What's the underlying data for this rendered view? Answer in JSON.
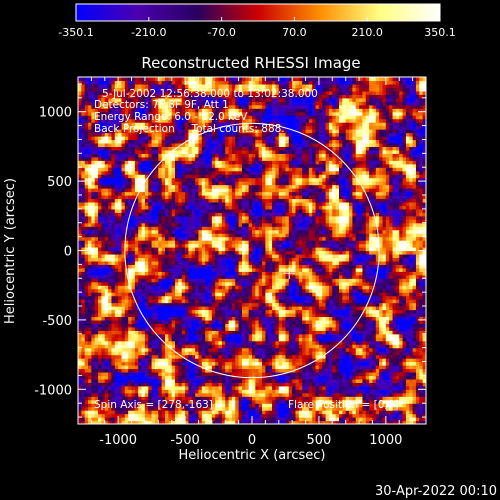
{
  "colorbar": {
    "tick_labels": [
      "-350.1",
      "-210.0",
      "-70.0",
      "70.0",
      "210.0",
      "350.1"
    ],
    "range": [
      -350.1,
      350.1
    ],
    "colormap": [
      "#0000ff",
      "#4b00b0",
      "#2a0060",
      "#cc0000",
      "#ff8c00",
      "#ffff80",
      "#ffffff"
    ]
  },
  "chart_data": {
    "type": "heatmap",
    "title": "Reconstructed RHESSI Image",
    "xlabel": "Heliocentric X (arcsec)",
    "ylabel": "Heliocentric Y (arcsec)",
    "xlim": [
      -1300,
      1300
    ],
    "ylim": [
      -1250,
      1250
    ],
    "x_ticks": [
      -1000,
      -500,
      0,
      500,
      1000
    ],
    "y_ticks": [
      -1000,
      -500,
      0,
      500,
      1000
    ],
    "x_tick_labels": [
      "-1000",
      "-500",
      "0",
      "500",
      "1000"
    ],
    "y_tick_labels": [
      "-1000",
      "-500",
      "0",
      "500",
      "1000"
    ],
    "solar_disk": {
      "center": [
        0,
        0
      ],
      "radius_arcsec": 950
    },
    "cross_marker": {
      "x": 278,
      "y": -163
    },
    "info_lines": [
      "5-Jul-2002 12:56:38.000 to 13:02:38.000",
      "Detectors: 7F 8F 9F, Att 1",
      "Energy Range: 6.0 - 12.0 keV",
      "Back Projection     Total counts: 888."
    ],
    "spin_axis_label": "Spin Axis = [278,-163]",
    "flare_position_label": "Flare Position = [0,0]"
  },
  "timestamp": "30-Apr-2022 00:10"
}
